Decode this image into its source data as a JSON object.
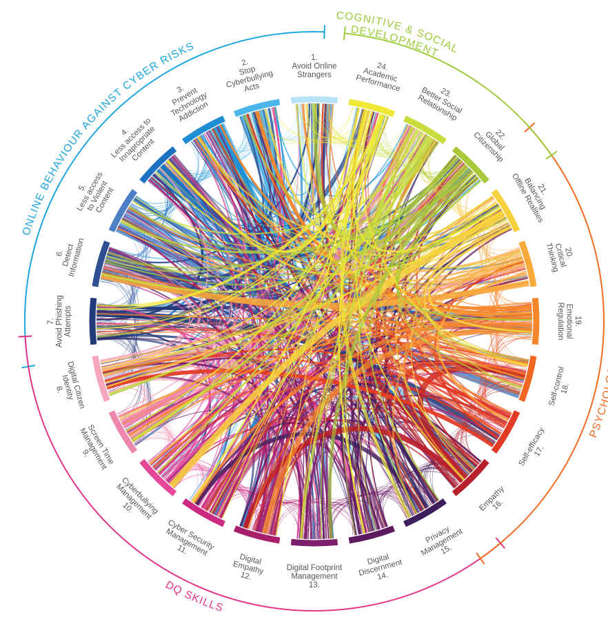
{
  "groups": [
    {
      "id": "online",
      "label": "ONLINE BEHAVIOUR AGAINST CYBER RISKS",
      "color": "#1ea6e0",
      "nodes": [
        1,
        2,
        3,
        4,
        5,
        6,
        7
      ]
    },
    {
      "id": "dq",
      "label": "DQ SKILLS",
      "color": "#e6338a",
      "nodes": [
        8,
        9,
        10,
        11,
        12,
        13,
        14,
        15
      ]
    },
    {
      "id": "psych",
      "label": "PSYCHOLOGICAL STRENGTH",
      "color": "#f26b21",
      "nodes": [
        16,
        17,
        18,
        19,
        20,
        21
      ]
    },
    {
      "id": "cog",
      "label": "COGNITIVE & SOCIAL DEVELOPMENT",
      "color": "#9ccb3b",
      "nodes": [
        22,
        23,
        24
      ]
    }
  ],
  "nodes": [
    {
      "num": "1.",
      "lines": [
        "Avoid Online",
        "Strangers"
      ],
      "color": "#b8e3f7",
      "group": "online"
    },
    {
      "num": "2.",
      "lines": [
        "Stop",
        "Cyberbullying",
        "Acts"
      ],
      "color": "#4cb6ea",
      "group": "online"
    },
    {
      "num": "3.",
      "lines": [
        "Prevent",
        "Technology",
        "Addiction"
      ],
      "color": "#1f8fd4",
      "group": "online"
    },
    {
      "num": "4.",
      "lines": [
        "Less access to",
        "Innapropriate",
        "Content"
      ],
      "color": "#1c72c0",
      "group": "online"
    },
    {
      "num": "5.",
      "lines": [
        "Less access",
        "to Violent",
        "Content"
      ],
      "color": "#4c7fc3",
      "group": "online"
    },
    {
      "num": "6.",
      "lines": [
        "Detect",
        "Information"
      ],
      "color": "#2f4f92",
      "group": "online"
    },
    {
      "num": "7.",
      "lines": [
        "Avoid Phishing",
        "Attempts"
      ],
      "color": "#223a7a",
      "group": "online"
    },
    {
      "num": "8.",
      "lines": [
        "Digital Citizen",
        "Identity"
      ],
      "color": "#f6a7be",
      "group": "dq"
    },
    {
      "num": "9.",
      "lines": [
        "Screen Time",
        "Management"
      ],
      "color": "#ef86ad",
      "group": "dq"
    },
    {
      "num": "10.",
      "lines": [
        "Cyberbullying",
        "Management"
      ],
      "color": "#e6479a",
      "group": "dq"
    },
    {
      "num": "11.",
      "lines": [
        "Cyber Security",
        "Management"
      ],
      "color": "#cc2a82",
      "group": "dq"
    },
    {
      "num": "12.",
      "lines": [
        "Digital",
        "Empathy"
      ],
      "color": "#a81f6c",
      "group": "dq"
    },
    {
      "num": "13.",
      "lines": [
        "Digital Footprint",
        "Management"
      ],
      "color": "#7d1f6c",
      "group": "dq"
    },
    {
      "num": "14.",
      "lines": [
        "Digital",
        "Discernment"
      ],
      "color": "#5e1a5f",
      "group": "dq"
    },
    {
      "num": "15.",
      "lines": [
        "Privacy",
        "Management"
      ],
      "color": "#3d1f5e",
      "group": "dq"
    },
    {
      "num": "16.",
      "lines": [
        "Empathy"
      ],
      "color": "#b8212b",
      "group": "psych"
    },
    {
      "num": "17.",
      "lines": [
        "Self-efficacy"
      ],
      "color": "#e23a24",
      "group": "psych"
    },
    {
      "num": "18.",
      "lines": [
        "Self-control"
      ],
      "color": "#f26624",
      "group": "psych"
    },
    {
      "num": "19.",
      "lines": [
        "Emotional",
        "Regulation"
      ],
      "color": "#f5862a",
      "group": "psych"
    },
    {
      "num": "20.",
      "lines": [
        "Critical",
        "Thinking"
      ],
      "color": "#f9a93a",
      "group": "psych"
    },
    {
      "num": "21.",
      "lines": [
        "Balancing",
        "Offline Realities"
      ],
      "color": "#f7d23e",
      "group": "psych"
    },
    {
      "num": "22.",
      "lines": [
        "Global",
        "Citizenship"
      ],
      "color": "#a8c93a",
      "group": "cog"
    },
    {
      "num": "23.",
      "lines": [
        "Better Social",
        "Relationship"
      ],
      "color": "#cadc3d",
      "group": "cog"
    },
    {
      "num": "24.",
      "lines": [
        "Academic",
        "Performance"
      ],
      "color": "#efe836",
      "group": "cog"
    }
  ]
}
